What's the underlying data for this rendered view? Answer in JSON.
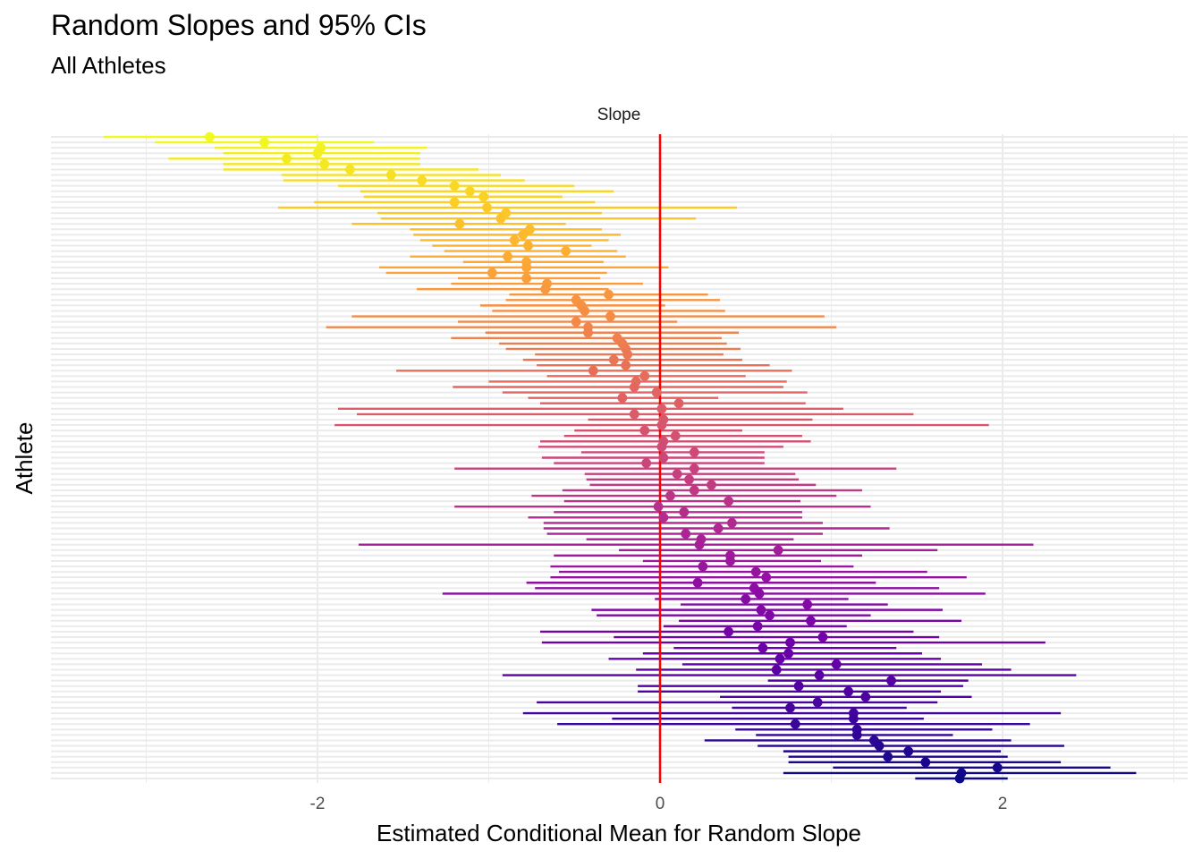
{
  "chart_data": {
    "type": "scatter",
    "title": "Random Slopes and 95% CIs",
    "subtitle": "All Athletes",
    "facet_label": "Slope",
    "xlabel": "Estimated Conditional Mean for Random Slope",
    "ylabel": "Athlete",
    "xlim": [
      -3.55,
      3.0
    ],
    "x_ticks": [
      -2,
      0,
      2
    ],
    "x_tick_labels": [
      "-2",
      "0",
      "2"
    ],
    "reference_line": 0,
    "reference_color": "#ff0000",
    "grid": true,
    "legend": "none",
    "palette": "plasma",
    "points": [
      {
        "mean": -2.63,
        "lo": -3.25,
        "hi": -2.0
      },
      {
        "mean": -2.31,
        "lo": -2.95,
        "hi": -1.67
      },
      {
        "mean": -1.98,
        "lo": -2.6,
        "hi": -1.36
      },
      {
        "mean": -2.0,
        "lo": -2.55,
        "hi": -1.4
      },
      {
        "mean": -2.18,
        "lo": -2.87,
        "hi": -1.4
      },
      {
        "mean": -1.96,
        "lo": -2.55,
        "hi": -1.4
      },
      {
        "mean": -1.81,
        "lo": -2.55,
        "hi": -1.06
      },
      {
        "mean": -1.57,
        "lo": -2.21,
        "hi": -0.93
      },
      {
        "mean": -1.39,
        "lo": -2.2,
        "hi": -0.79
      },
      {
        "mean": -1.2,
        "lo": -1.88,
        "hi": -0.5
      },
      {
        "mean": -1.11,
        "lo": -1.75,
        "hi": -0.27
      },
      {
        "mean": -1.03,
        "lo": -1.73,
        "hi": -0.57
      },
      {
        "mean": -1.2,
        "lo": -2.02,
        "hi": -0.38
      },
      {
        "mean": -1.01,
        "lo": -2.23,
        "hi": 0.45
      },
      {
        "mean": -0.9,
        "lo": -1.65,
        "hi": -0.34
      },
      {
        "mean": -0.93,
        "lo": -1.63,
        "hi": 0.21
      },
      {
        "mean": -1.17,
        "lo": -1.8,
        "hi": -0.55
      },
      {
        "mean": -0.76,
        "lo": -1.46,
        "hi": -0.34
      },
      {
        "mean": -0.8,
        "lo": -1.44,
        "hi": -0.23
      },
      {
        "mean": -0.85,
        "lo": -1.4,
        "hi": -0.3
      },
      {
        "mean": -0.77,
        "lo": -1.33,
        "hi": -0.4
      },
      {
        "mean": -0.55,
        "lo": -1.26,
        "hi": -0.25
      },
      {
        "mean": -0.89,
        "lo": -1.46,
        "hi": -0.2
      },
      {
        "mean": -0.78,
        "lo": -1.15,
        "hi": -0.33
      },
      {
        "mean": -0.78,
        "lo": -1.64,
        "hi": 0.05
      },
      {
        "mean": -0.98,
        "lo": -1.6,
        "hi": -0.31
      },
      {
        "mean": -0.78,
        "lo": -1.18,
        "hi": -0.35
      },
      {
        "mean": -0.66,
        "lo": -1.22,
        "hi": -0.1
      },
      {
        "mean": -0.67,
        "lo": -1.42,
        "hi": -0.3
      },
      {
        "mean": -0.3,
        "lo": -0.88,
        "hi": 0.28
      },
      {
        "mean": -0.49,
        "lo": -0.9,
        "hi": 0.35
      },
      {
        "mean": -0.46,
        "lo": -1.05,
        "hi": 0.03
      },
      {
        "mean": -0.44,
        "lo": -0.98,
        "hi": 0.38
      },
      {
        "mean": -0.29,
        "lo": -1.8,
        "hi": 0.96
      },
      {
        "mean": -0.49,
        "lo": -1.18,
        "hi": 0.1
      },
      {
        "mean": -0.42,
        "lo": -1.95,
        "hi": 1.03
      },
      {
        "mean": -0.42,
        "lo": -1.02,
        "hi": 0.46
      },
      {
        "mean": -0.25,
        "lo": -1.22,
        "hi": 0.36
      },
      {
        "mean": -0.22,
        "lo": -0.94,
        "hi": 0.39
      },
      {
        "mean": -0.2,
        "lo": -0.9,
        "hi": 0.47
      },
      {
        "mean": -0.19,
        "lo": -0.73,
        "hi": 0.37
      },
      {
        "mean": -0.27,
        "lo": -0.8,
        "hi": 0.48
      },
      {
        "mean": -0.2,
        "lo": -0.72,
        "hi": 0.64
      },
      {
        "mean": -0.39,
        "lo": -1.54,
        "hi": 0.77
      },
      {
        "mean": -0.09,
        "lo": -0.66,
        "hi": 0.5
      },
      {
        "mean": -0.14,
        "lo": -1.0,
        "hi": 0.74
      },
      {
        "mean": -0.15,
        "lo": -1.21,
        "hi": 0.72
      },
      {
        "mean": -0.02,
        "lo": -0.92,
        "hi": 0.86
      },
      {
        "mean": -0.22,
        "lo": -0.77,
        "hi": 0.34
      },
      {
        "mean": 0.11,
        "lo": -0.7,
        "hi": 0.85
      },
      {
        "mean": 0.01,
        "lo": -1.88,
        "hi": 1.07
      },
      {
        "mean": -0.15,
        "lo": -1.77,
        "hi": 1.48
      },
      {
        "mean": 0.02,
        "lo": -0.42,
        "hi": 0.89
      },
      {
        "mean": 0.01,
        "lo": -1.9,
        "hi": 1.92
      },
      {
        "mean": -0.09,
        "lo": -0.5,
        "hi": 0.48
      },
      {
        "mean": 0.09,
        "lo": -0.56,
        "hi": 0.83
      },
      {
        "mean": 0.02,
        "lo": -0.7,
        "hi": 0.88
      },
      {
        "mean": 0.01,
        "lo": -0.71,
        "hi": 0.72
      },
      {
        "mean": 0.2,
        "lo": -0.46,
        "hi": 0.61
      },
      {
        "mean": 0.02,
        "lo": -0.69,
        "hi": 0.61
      },
      {
        "mean": -0.08,
        "lo": -0.62,
        "hi": 0.61
      },
      {
        "mean": 0.2,
        "lo": -1.2,
        "hi": 1.38
      },
      {
        "mean": 0.1,
        "lo": -0.44,
        "hi": 0.79
      },
      {
        "mean": 0.17,
        "lo": -0.43,
        "hi": 0.81
      },
      {
        "mean": 0.3,
        "lo": -0.41,
        "hi": 0.91
      },
      {
        "mean": 0.2,
        "lo": -0.57,
        "hi": 1.18
      },
      {
        "mean": 0.06,
        "lo": -0.75,
        "hi": 1.03
      },
      {
        "mean": 0.4,
        "lo": -0.56,
        "hi": 0.82
      },
      {
        "mean": -0.01,
        "lo": -1.2,
        "hi": 1.23
      },
      {
        "mean": 0.14,
        "lo": -0.62,
        "hi": 0.83
      },
      {
        "mean": 0.02,
        "lo": -0.77,
        "hi": 0.83
      },
      {
        "mean": 0.42,
        "lo": -0.68,
        "hi": 0.95
      },
      {
        "mean": 0.34,
        "lo": -0.68,
        "hi": 1.34
      },
      {
        "mean": 0.15,
        "lo": -0.66,
        "hi": 0.95
      },
      {
        "mean": 0.24,
        "lo": -0.43,
        "hi": 0.78
      },
      {
        "mean": 0.23,
        "lo": -1.76,
        "hi": 2.18
      },
      {
        "mean": 0.69,
        "lo": -0.24,
        "hi": 1.62
      },
      {
        "mean": 0.41,
        "lo": -0.62,
        "hi": 1.18
      },
      {
        "mean": 0.41,
        "lo": -0.1,
        "hi": 0.94
      },
      {
        "mean": 0.25,
        "lo": -0.64,
        "hi": 1.13
      },
      {
        "mean": 0.56,
        "lo": -0.59,
        "hi": 1.56
      },
      {
        "mean": 0.62,
        "lo": -0.64,
        "hi": 1.79
      },
      {
        "mean": 0.22,
        "lo": -0.78,
        "hi": 1.26
      },
      {
        "mean": 0.55,
        "lo": -0.73,
        "hi": 1.63
      },
      {
        "mean": 0.58,
        "lo": -1.27,
        "hi": 1.9
      },
      {
        "mean": 0.5,
        "lo": -0.03,
        "hi": 1.1
      },
      {
        "mean": 0.86,
        "lo": 0.12,
        "hi": 1.33
      },
      {
        "mean": 0.59,
        "lo": -0.4,
        "hi": 1.65
      },
      {
        "mean": 0.64,
        "lo": -0.37,
        "hi": 1.23
      },
      {
        "mean": 0.88,
        "lo": 0.11,
        "hi": 1.76
      },
      {
        "mean": 0.57,
        "lo": 0.02,
        "hi": 1.09
      },
      {
        "mean": 0.4,
        "lo": -0.7,
        "hi": 1.48
      },
      {
        "mean": 0.95,
        "lo": -0.27,
        "hi": 1.63
      },
      {
        "mean": 0.76,
        "lo": -0.69,
        "hi": 2.25
      },
      {
        "mean": 0.6,
        "lo": 0.08,
        "hi": 1.38
      },
      {
        "mean": 0.75,
        "lo": -0.1,
        "hi": 1.53
      },
      {
        "mean": 0.7,
        "lo": -0.3,
        "hi": 1.64
      },
      {
        "mean": 1.03,
        "lo": 0.13,
        "hi": 1.88
      },
      {
        "mean": 0.68,
        "lo": -0.14,
        "hi": 2.05
      },
      {
        "mean": 0.93,
        "lo": -0.92,
        "hi": 2.43
      },
      {
        "mean": 1.35,
        "lo": 0.63,
        "hi": 1.8
      },
      {
        "mean": 0.81,
        "lo": -0.13,
        "hi": 1.77
      },
      {
        "mean": 1.1,
        "lo": -0.13,
        "hi": 1.64
      },
      {
        "mean": 1.2,
        "lo": 0.35,
        "hi": 1.82
      },
      {
        "mean": 0.92,
        "lo": -0.72,
        "hi": 1.62
      },
      {
        "mean": 0.76,
        "lo": 0.42,
        "hi": 1.44
      },
      {
        "mean": 1.13,
        "lo": -0.8,
        "hi": 2.34
      },
      {
        "mean": 1.13,
        "lo": -0.28,
        "hi": 1.54
      },
      {
        "mean": 0.79,
        "lo": -0.6,
        "hi": 2.16
      },
      {
        "mean": 1.15,
        "lo": 0.44,
        "hi": 1.94
      },
      {
        "mean": 1.15,
        "lo": 0.56,
        "hi": 1.71
      },
      {
        "mean": 1.25,
        "lo": 0.26,
        "hi": 2.05
      },
      {
        "mean": 1.28,
        "lo": 0.57,
        "hi": 2.36
      },
      {
        "mean": 1.45,
        "lo": 0.72,
        "hi": 1.99
      },
      {
        "mean": 1.33,
        "lo": 0.75,
        "hi": 2.03
      },
      {
        "mean": 1.55,
        "lo": 0.75,
        "hi": 2.34
      },
      {
        "mean": 1.97,
        "lo": 1.01,
        "hi": 2.63
      },
      {
        "mean": 1.76,
        "lo": 0.72,
        "hi": 2.78
      },
      {
        "mean": 1.75,
        "lo": 1.49,
        "hi": 2.03
      }
    ]
  }
}
